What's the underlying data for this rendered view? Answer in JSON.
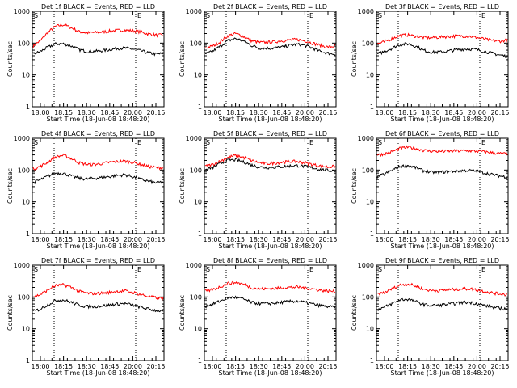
{
  "colors": {
    "events": "#000000",
    "lld": "#ff0000",
    "axes": "#000000",
    "background": "#ffffff"
  },
  "chart_data": [
    {
      "type": "line",
      "title": "Det 1f BLACK = Events, RED = LLD",
      "ylabel": "Counts/sec",
      "xlabel": "Start Time (18-Jun-08 18:48:20)",
      "yscale": "log",
      "ylim": [
        1,
        1000
      ],
      "ytick_labels": [
        "1",
        "10",
        "100",
        "1000"
      ],
      "xtick_labels": [
        "18:00",
        "18:15",
        "18:30",
        "18:45",
        "20:00",
        "20:15"
      ],
      "markers": [
        "S",
        "E"
      ],
      "series": [
        {
          "values": [
            80,
            120,
            220,
            340,
            380,
            300,
            230,
            210,
            215,
            225,
            240,
            250,
            255,
            245,
            225,
            195,
            180,
            178
          ]
        },
        {
          "values": [
            45,
            55,
            75,
            95,
            95,
            80,
            62,
            55,
            55,
            58,
            62,
            68,
            70,
            65,
            58,
            50,
            45,
            47
          ]
        }
      ]
    },
    {
      "type": "line",
      "title": "Det 2f BLACK = Events, RED = LLD",
      "ylabel": "Counts/sec",
      "xlabel": "Start Time (18-Jun-08 18:48:20)",
      "yscale": "log",
      "ylim": [
        1,
        1000
      ],
      "ytick_labels": [
        "1",
        "10",
        "100",
        "1000"
      ],
      "xtick_labels": [
        "18:00",
        "18:15",
        "18:30",
        "18:45",
        "20:00",
        "20:15"
      ],
      "markers": [
        "S",
        "E"
      ],
      "series": [
        {
          "values": [
            70,
            80,
            110,
            170,
            200,
            160,
            120,
            105,
            105,
            110,
            118,
            125,
            130,
            120,
            100,
            85,
            75,
            80
          ]
        },
        {
          "values": [
            45,
            55,
            80,
            120,
            140,
            115,
            85,
            70,
            68,
            70,
            75,
            85,
            92,
            85,
            70,
            55,
            48,
            45
          ]
        }
      ]
    },
    {
      "type": "line",
      "title": "Det 3f BLACK = Events, RED = LLD",
      "ylabel": "Counts/sec",
      "xlabel": "Start Time (18-Jun-08 18:48:20)",
      "yscale": "log",
      "ylim": [
        1,
        1000
      ],
      "ytick_labels": [
        "1",
        "10",
        "100",
        "1000"
      ],
      "xtick_labels": [
        "18:00",
        "18:15",
        "18:30",
        "18:45",
        "20:00",
        "20:15"
      ],
      "markers": [
        "S",
        "E"
      ],
      "series": [
        {
          "values": [
            95,
            110,
            140,
            175,
            180,
            165,
            150,
            148,
            152,
            160,
            165,
            168,
            165,
            150,
            135,
            120,
            115,
            125
          ]
        },
        {
          "values": [
            45,
            55,
            70,
            90,
            95,
            80,
            60,
            52,
            52,
            55,
            60,
            64,
            66,
            62,
            55,
            48,
            42,
            38
          ]
        }
      ]
    },
    {
      "type": "line",
      "title": "Det 4f BLACK = Events, RED = LLD",
      "ylabel": "Counts/sec",
      "xlabel": "Start Time (18-Jun-08 18:48:20)",
      "yscale": "log",
      "ylim": [
        1,
        1000
      ],
      "ytick_labels": [
        "1",
        "10",
        "100",
        "1000"
      ],
      "xtick_labels": [
        "18:00",
        "18:15",
        "18:30",
        "18:45",
        "20:00",
        "20:15"
      ],
      "markers": [
        "S",
        "E"
      ],
      "series": [
        {
          "values": [
            110,
            130,
            180,
            260,
            290,
            230,
            170,
            150,
            150,
            160,
            175,
            185,
            190,
            175,
            150,
            130,
            120,
            118
          ]
        },
        {
          "values": [
            40,
            50,
            65,
            80,
            78,
            65,
            55,
            52,
            55,
            58,
            62,
            68,
            70,
            62,
            52,
            45,
            40,
            42
          ]
        }
      ]
    },
    {
      "type": "line",
      "title": "Det 5f BLACK = Events, RED = LLD",
      "ylabel": "Counts/sec",
      "xlabel": "Start Time (18-Jun-08 18:48:20)",
      "yscale": "log",
      "ylim": [
        1,
        1000
      ],
      "ytick_labels": [
        "1",
        "10",
        "100",
        "1000"
      ],
      "xtick_labels": [
        "18:00",
        "18:15",
        "18:30",
        "18:45",
        "20:00",
        "20:15"
      ],
      "markers": [
        "S",
        "E"
      ],
      "series": [
        {
          "values": [
            130,
            150,
            190,
            250,
            290,
            250,
            200,
            170,
            160,
            165,
            175,
            185,
            185,
            170,
            150,
            135,
            125,
            130
          ]
        },
        {
          "values": [
            100,
            120,
            160,
            205,
            210,
            180,
            145,
            125,
            120,
            122,
            128,
            135,
            138,
            130,
            118,
            105,
            98,
            95
          ]
        }
      ]
    },
    {
      "type": "line",
      "title": "Det 6f BLACK = Events, RED = LLD",
      "ylabel": "Counts/sec",
      "xlabel": "Start Time (18-Jun-08 18:48:20)",
      "yscale": "log",
      "ylim": [
        1,
        1000
      ],
      "ytick_labels": [
        "1",
        "10",
        "100",
        "1000"
      ],
      "xtick_labels": [
        "18:00",
        "18:15",
        "18:30",
        "18:45",
        "20:00",
        "20:15"
      ],
      "markers": [
        "S",
        "E"
      ],
      "series": [
        {
          "values": [
            300,
            320,
            380,
            480,
            520,
            480,
            420,
            390,
            385,
            390,
            395,
            400,
            400,
            390,
            375,
            350,
            330,
            320
          ]
        },
        {
          "values": [
            60,
            75,
            100,
            130,
            140,
            120,
            95,
            85,
            85,
            88,
            92,
            96,
            98,
            92,
            82,
            72,
            65,
            60
          ]
        }
      ]
    },
    {
      "type": "line",
      "title": "Det 7f BLACK = Events, RED = LLD",
      "ylabel": "Counts/sec",
      "xlabel": "Start Time (18-Jun-08 18:48:20)",
      "yscale": "log",
      "ylim": [
        1,
        1000
      ],
      "ytick_labels": [
        "1",
        "10",
        "100",
        "1000"
      ],
      "xtick_labels": [
        "18:00",
        "18:15",
        "18:30",
        "18:45",
        "20:00",
        "20:15"
      ],
      "markers": [
        "S",
        "E"
      ],
      "series": [
        {
          "values": [
            100,
            120,
            170,
            230,
            240,
            200,
            150,
            130,
            128,
            132,
            140,
            150,
            155,
            140,
            120,
            105,
            95,
            90
          ]
        },
        {
          "values": [
            35,
            42,
            58,
            78,
            80,
            68,
            55,
            50,
            50,
            53,
            56,
            60,
            62,
            56,
            48,
            42,
            38,
            36
          ]
        }
      ]
    },
    {
      "type": "line",
      "title": "Det 8f BLACK = Events, RED = LLD",
      "ylabel": "Counts/sec",
      "xlabel": "Start Time (18-Jun-08 18:48:20)",
      "yscale": "log",
      "ylim": [
        1,
        1000
      ],
      "ytick_labels": [
        "1",
        "10",
        "100",
        "1000"
      ],
      "xtick_labels": [
        "18:00",
        "18:15",
        "18:30",
        "18:45",
        "20:00",
        "20:15"
      ],
      "markers": [
        "S",
        "E"
      ],
      "series": [
        {
          "values": [
            150,
            170,
            210,
            270,
            285,
            250,
            200,
            180,
            180,
            185,
            195,
            200,
            205,
            195,
            180,
            165,
            155,
            150
          ]
        },
        {
          "values": [
            50,
            60,
            75,
            95,
            98,
            85,
            68,
            62,
            62,
            64,
            68,
            72,
            74,
            68,
            60,
            54,
            50,
            48
          ]
        }
      ]
    },
    {
      "type": "line",
      "title": "Det 9f BLACK = Events, RED = LLD",
      "ylabel": "Counts/sec",
      "xlabel": "Start Time (18-Jun-08 18:48:20)",
      "yscale": "log",
      "ylim": [
        1,
        1000
      ],
      "ytick_labels": [
        "1",
        "10",
        "100",
        "1000"
      ],
      "xtick_labels": [
        "18:00",
        "18:15",
        "18:30",
        "18:45",
        "20:00",
        "20:15"
      ],
      "markers": [
        "S",
        "E"
      ],
      "series": [
        {
          "values": [
            120,
            140,
            180,
            240,
            260,
            220,
            175,
            160,
            160,
            165,
            172,
            180,
            182,
            168,
            150,
            135,
            125,
            120
          ]
        },
        {
          "values": [
            40,
            48,
            62,
            82,
            85,
            72,
            58,
            54,
            55,
            58,
            62,
            66,
            68,
            62,
            54,
            48,
            44,
            42
          ]
        }
      ]
    }
  ]
}
